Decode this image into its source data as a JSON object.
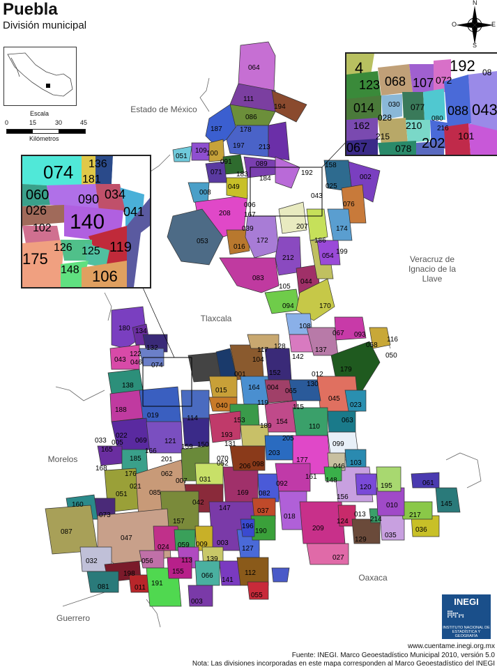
{
  "header": {
    "title": "Puebla",
    "subtitle": "División municipal"
  },
  "scale": {
    "title": "Escala",
    "ticks": [
      "0",
      "15",
      "30",
      "45"
    ],
    "unit": "Kilómetros"
  },
  "compass": {
    "n": "N",
    "s": "S",
    "e": "E",
    "o": "O"
  },
  "neighbors": {
    "mexico": "Estado de México",
    "veracruz": "Veracruz de Ignacio de la Llave",
    "tlaxcala": "Tlaxcala",
    "morelos": "Morelos",
    "guerrero": "Guerrero",
    "oaxaca": "Oaxaca"
  },
  "logo": {
    "name": "INEGI",
    "sub": "INSTITUTO NACIONAL DE ESTADÍSTICA Y GEOGRAFÍA"
  },
  "footer": {
    "url": "www.cuentame.inegi.org.mx",
    "source": "Fuente: INEGI. Marco Geoestadístico Municipal 2010, versión 5.0",
    "note": "Nota: Las divisiones incorporadas en este mapa corresponden al Marco Geoestadístico del INEGI"
  },
  "zoom_left": [
    "074",
    "136",
    "181",
    "060",
    "090",
    "034",
    "026",
    "041",
    "140",
    "102",
    "119",
    "175",
    "126",
    "125",
    "148",
    "106"
  ],
  "zoom_right": [
    "192",
    "4",
    "123",
    "068",
    "107",
    "072",
    "014",
    "030",
    "077",
    "043",
    "162",
    "028",
    "210",
    "088",
    "215",
    "080",
    "216",
    "067",
    "078",
    "202",
    "101",
    "08"
  ],
  "municipalities": [
    "064",
    "111",
    "194",
    "086",
    "187",
    "178",
    "197",
    "213",
    "051",
    "109",
    "100",
    "091",
    "089",
    "071",
    "183",
    "184",
    "192",
    "158",
    "002",
    "049",
    "008",
    "043",
    "025",
    "076",
    "208",
    "006",
    "167",
    "039",
    "053",
    "016",
    "172",
    "207",
    "174",
    "186",
    "199",
    "212",
    "054",
    "083",
    "105",
    "044",
    "094",
    "170",
    "108",
    "067",
    "093",
    "058",
    "116",
    "050",
    "180",
    "134",
    "132",
    "043",
    "122",
    "046",
    "074",
    "117",
    "128",
    "137",
    "001",
    "104",
    "152",
    "142",
    "012",
    "179",
    "138",
    "015",
    "164",
    "004",
    "065",
    "130",
    "045",
    "188",
    "019",
    "040",
    "114",
    "119",
    "115",
    "023",
    "033",
    "005",
    "165",
    "022",
    "069",
    "121",
    "159",
    "150",
    "193",
    "153",
    "189",
    "154",
    "110",
    "063",
    "099",
    "185",
    "166",
    "205",
    "203",
    "177",
    "046",
    "103",
    "168",
    "176",
    "201",
    "070",
    "052",
    "131",
    "206",
    "098",
    "021",
    "051",
    "085",
    "062",
    "007",
    "031",
    "169",
    "082",
    "092",
    "161",
    "148",
    "156",
    "120",
    "195",
    "061",
    "160",
    "042",
    "147",
    "037",
    "018",
    "010",
    "145",
    "073",
    "087",
    "047",
    "157",
    "003",
    "196",
    "190",
    "209",
    "124",
    "013",
    "214",
    "217",
    "036",
    "024",
    "059",
    "009",
    "127",
    "035",
    "129",
    "032",
    "056",
    "113",
    "139",
    "027",
    "198",
    "011",
    "155",
    "066",
    "141",
    "112",
    "081",
    "191",
    "003",
    "055"
  ],
  "colors": {
    "border": "#333333",
    "state_fill": "#f0f0f0"
  }
}
